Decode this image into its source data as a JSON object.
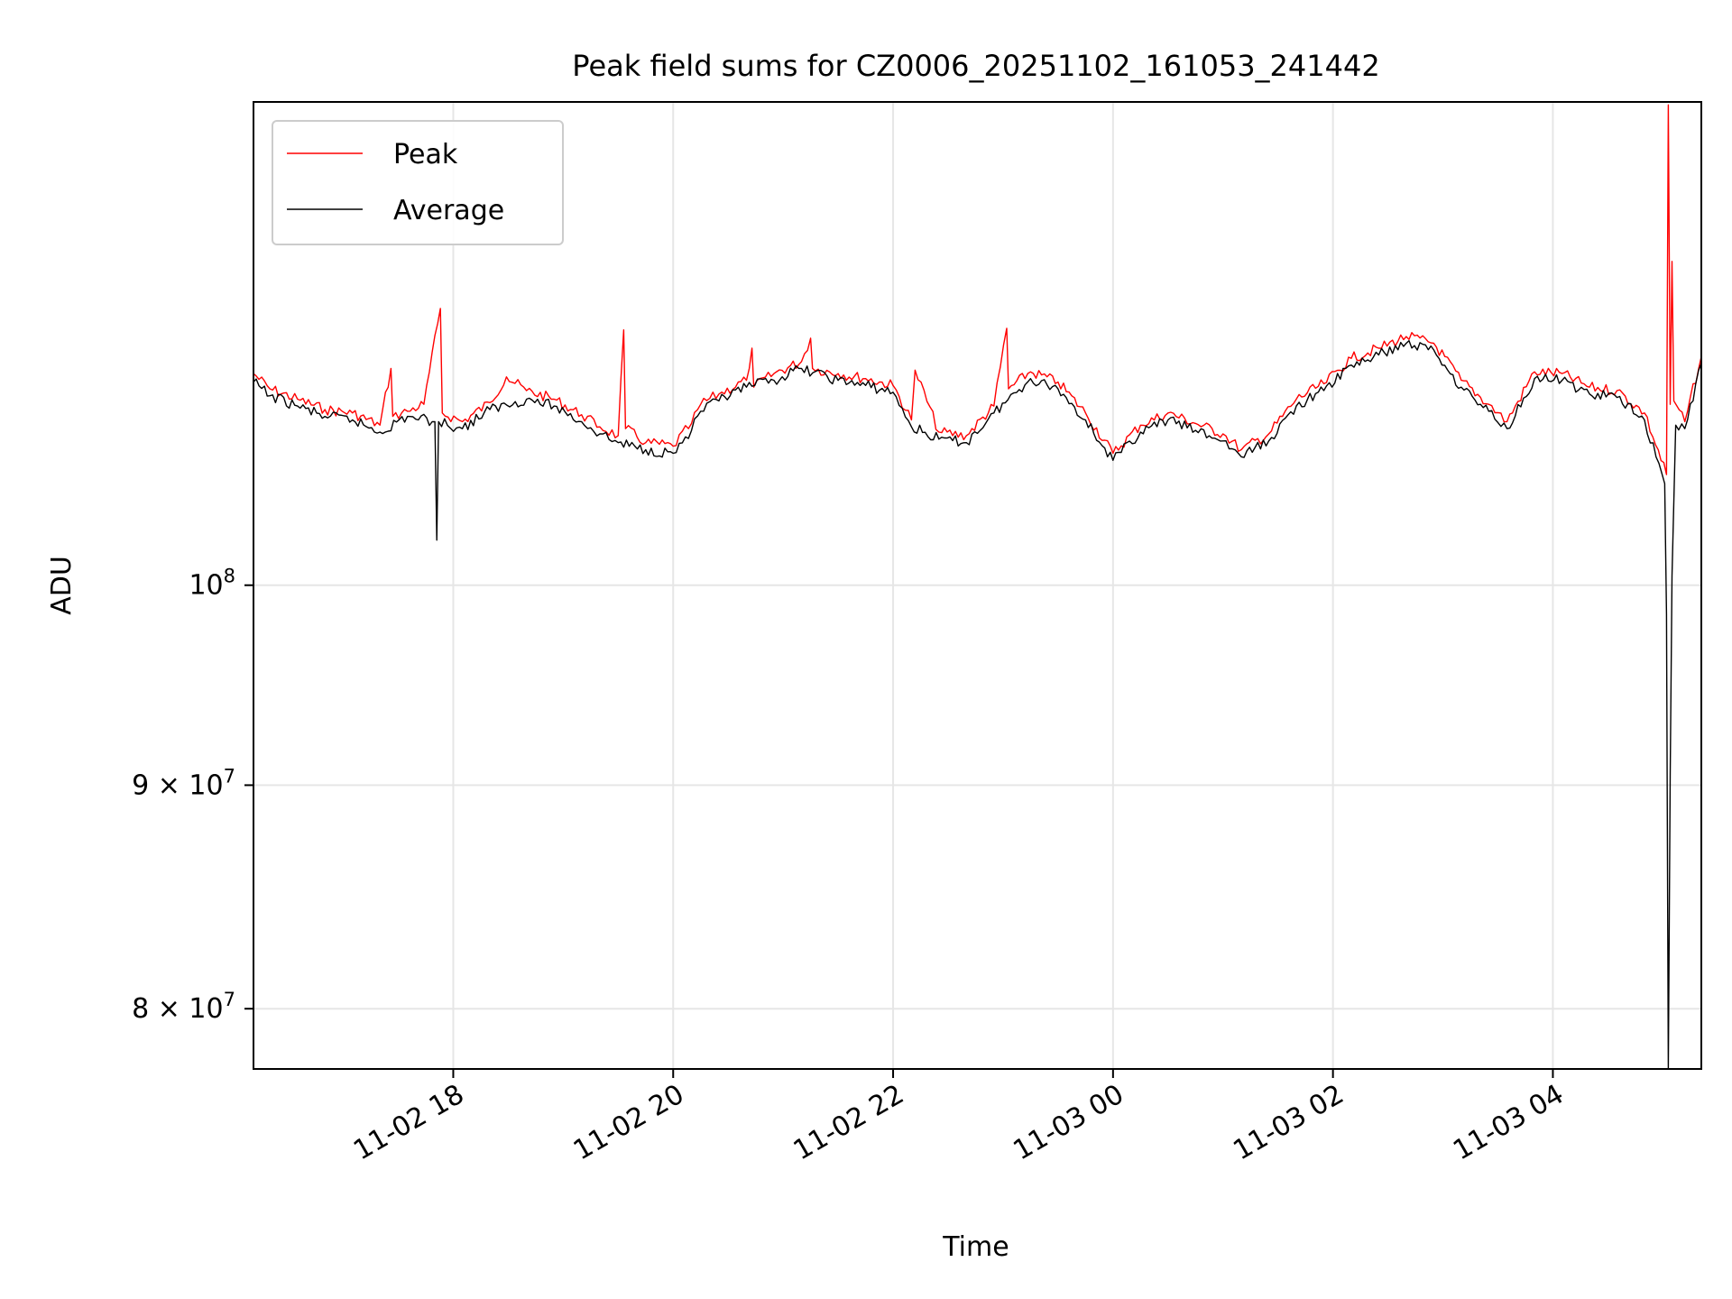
{
  "chart_data": {
    "type": "line",
    "title": "Peak field sums for CZ0006_20251102_161053_241442",
    "xlabel": "Time",
    "ylabel": "ADU",
    "yscale": "log",
    "grid": true,
    "legend_position": "top-left",
    "xlim": [
      "2025-11-02T16:11",
      "2025-11-03T05:21"
    ],
    "ylim": [
      77500000,
      129000000
    ],
    "x_ticks": [
      {
        "at": "2025-11-02T18:00",
        "label": "11-02 18"
      },
      {
        "at": "2025-11-02T20:00",
        "label": "11-02 20"
      },
      {
        "at": "2025-11-02T22:00",
        "label": "11-02 22"
      },
      {
        "at": "2025-11-03T00:00",
        "label": "11-03 00"
      },
      {
        "at": "2025-11-03T02:00",
        "label": "11-03 02"
      },
      {
        "at": "2025-11-03T04:00",
        "label": "11-03 04"
      }
    ],
    "y_ticks": [
      {
        "value": 80000000,
        "label_base": "8 × 10",
        "label_exp": "7"
      },
      {
        "value": 90000000,
        "label_base": "9 × 10",
        "label_exp": "7"
      },
      {
        "value": 100000000,
        "label_base": "10",
        "label_exp": "8"
      }
    ],
    "series": [
      {
        "name": "Peak",
        "color": "#ff0000",
        "points": [
          [
            "2025-11-02T16:11",
            111800000
          ],
          [
            "2025-11-02T16:20",
            110900000
          ],
          [
            "2025-11-02T16:35",
            110300000
          ],
          [
            "2025-11-02T16:50",
            109700000
          ],
          [
            "2025-11-02T17:05",
            109500000
          ],
          [
            "2025-11-02T17:20",
            108800000
          ],
          [
            "2025-11-02T17:26",
            112100000
          ],
          [
            "2025-11-02T17:27",
            109300000
          ],
          [
            "2025-11-02T17:35",
            109600000
          ],
          [
            "2025-11-02T17:44",
            110000000
          ],
          [
            "2025-11-02T17:53",
            115700000
          ],
          [
            "2025-11-02T17:54",
            109500000
          ],
          [
            "2025-11-02T18:05",
            109000000
          ],
          [
            "2025-11-02T18:20",
            110100000
          ],
          [
            "2025-11-02T18:29",
            111600000
          ],
          [
            "2025-11-02T18:40",
            110800000
          ],
          [
            "2025-11-02T18:55",
            110300000
          ],
          [
            "2025-11-02T19:10",
            109400000
          ],
          [
            "2025-11-02T19:20",
            108700000
          ],
          [
            "2025-11-02T19:30",
            108200000
          ],
          [
            "2025-11-02T19:33",
            114400000
          ],
          [
            "2025-11-02T19:34",
            108600000
          ],
          [
            "2025-11-02T19:45",
            107800000
          ],
          [
            "2025-11-02T20:00",
            107600000
          ],
          [
            "2025-11-02T20:10",
            108900000
          ],
          [
            "2025-11-02T20:15",
            110000000
          ],
          [
            "2025-11-02T20:25",
            110600000
          ],
          [
            "2025-11-02T20:40",
            111400000
          ],
          [
            "2025-11-02T20:43",
            113300000
          ],
          [
            "2025-11-02T20:44",
            111000000
          ],
          [
            "2025-11-02T20:55",
            111800000
          ],
          [
            "2025-11-02T21:10",
            112500000
          ],
          [
            "2025-11-02T21:15",
            113900000
          ],
          [
            "2025-11-02T21:16",
            112100000
          ],
          [
            "2025-11-02T21:30",
            111800000
          ],
          [
            "2025-11-02T21:45",
            111500000
          ],
          [
            "2025-11-02T22:00",
            111100000
          ],
          [
            "2025-11-02T22:10",
            109100000
          ],
          [
            "2025-11-02T22:12",
            112000000
          ],
          [
            "2025-11-02T22:25",
            108400000
          ],
          [
            "2025-11-02T22:40",
            108200000
          ],
          [
            "2025-11-02T22:55",
            109900000
          ],
          [
            "2025-11-02T23:02",
            114500000
          ],
          [
            "2025-11-02T23:03",
            110900000
          ],
          [
            "2025-11-02T23:15",
            111900000
          ],
          [
            "2025-11-02T23:30",
            111300000
          ],
          [
            "2025-11-02T23:45",
            109500000
          ],
          [
            "2025-11-03T00:00",
            107200000
          ],
          [
            "2025-11-03T00:15",
            108800000
          ],
          [
            "2025-11-03T00:30",
            109500000
          ],
          [
            "2025-11-03T00:45",
            108900000
          ],
          [
            "2025-11-03T01:00",
            108300000
          ],
          [
            "2025-11-03T01:10",
            107400000
          ],
          [
            "2025-11-03T01:25",
            108300000
          ],
          [
            "2025-11-03T01:40",
            110300000
          ],
          [
            "2025-11-03T01:55",
            111200000
          ],
          [
            "2025-11-03T02:10",
            112700000
          ],
          [
            "2025-11-03T02:25",
            113300000
          ],
          [
            "2025-11-03T02:40",
            114000000
          ],
          [
            "2025-11-03T02:55",
            113600000
          ],
          [
            "2025-11-03T03:10",
            111400000
          ],
          [
            "2025-11-03T03:25",
            110000000
          ],
          [
            "2025-11-03T03:35",
            109000000
          ],
          [
            "2025-11-03T03:50",
            111900000
          ],
          [
            "2025-11-03T04:05",
            111800000
          ],
          [
            "2025-11-03T04:20",
            111000000
          ],
          [
            "2025-11-03T04:35",
            110800000
          ],
          [
            "2025-11-03T04:50",
            109500000
          ],
          [
            "2025-11-03T05:02",
            106000000
          ],
          [
            "2025-11-03T05:03",
            128800000
          ],
          [
            "2025-11-03T05:04",
            110000000
          ],
          [
            "2025-11-03T05:05",
            118600000
          ],
          [
            "2025-11-03T05:06",
            110200000
          ],
          [
            "2025-11-03T05:12",
            109000000
          ],
          [
            "2025-11-03T05:21",
            112800000
          ]
        ]
      },
      {
        "name": "Average",
        "color": "#000000",
        "points": [
          [
            "2025-11-02T16:11",
            111300000
          ],
          [
            "2025-11-02T16:20",
            110500000
          ],
          [
            "2025-11-02T16:35",
            109900000
          ],
          [
            "2025-11-02T16:50",
            109300000
          ],
          [
            "2025-11-02T17:05",
            109100000
          ],
          [
            "2025-11-02T17:20",
            108400000
          ],
          [
            "2025-11-02T17:35",
            109300000
          ],
          [
            "2025-11-02T17:50",
            109000000
          ],
          [
            "2025-11-02T17:51",
            102400000
          ],
          [
            "2025-11-02T17:52",
            109000000
          ],
          [
            "2025-11-02T18:05",
            108600000
          ],
          [
            "2025-11-02T18:20",
            109700000
          ],
          [
            "2025-11-02T18:40",
            110300000
          ],
          [
            "2025-11-02T18:55",
            109900000
          ],
          [
            "2025-11-02T19:10",
            109000000
          ],
          [
            "2025-11-02T19:20",
            108300000
          ],
          [
            "2025-11-02T19:30",
            107800000
          ],
          [
            "2025-11-02T19:45",
            107400000
          ],
          [
            "2025-11-02T20:00",
            107200000
          ],
          [
            "2025-11-02T20:10",
            108500000
          ],
          [
            "2025-11-02T20:15",
            109600000
          ],
          [
            "2025-11-02T20:25",
            110200000
          ],
          [
            "2025-11-02T20:40",
            111000000
          ],
          [
            "2025-11-02T20:55",
            111400000
          ],
          [
            "2025-11-02T21:10",
            112100000
          ],
          [
            "2025-11-02T21:30",
            111400000
          ],
          [
            "2025-11-02T21:45",
            111100000
          ],
          [
            "2025-11-02T22:00",
            110700000
          ],
          [
            "2025-11-02T22:10",
            108700000
          ],
          [
            "2025-11-02T22:25",
            108000000
          ],
          [
            "2025-11-02T22:40",
            107800000
          ],
          [
            "2025-11-02T22:55",
            109500000
          ],
          [
            "2025-11-02T23:15",
            111500000
          ],
          [
            "2025-11-02T23:30",
            110900000
          ],
          [
            "2025-11-02T23:45",
            109100000
          ],
          [
            "2025-11-03T00:00",
            106800000
          ],
          [
            "2025-11-03T00:15",
            108400000
          ],
          [
            "2025-11-03T00:30",
            109100000
          ],
          [
            "2025-11-03T00:45",
            108500000
          ],
          [
            "2025-11-03T01:00",
            107900000
          ],
          [
            "2025-11-03T01:10",
            107000000
          ],
          [
            "2025-11-03T01:25",
            107900000
          ],
          [
            "2025-11-03T01:40",
            109900000
          ],
          [
            "2025-11-03T01:55",
            110800000
          ],
          [
            "2025-11-03T02:10",
            112300000
          ],
          [
            "2025-11-03T02:25",
            112900000
          ],
          [
            "2025-11-03T02:40",
            113600000
          ],
          [
            "2025-11-03T02:55",
            113200000
          ],
          [
            "2025-11-03T03:10",
            111000000
          ],
          [
            "2025-11-03T03:25",
            109600000
          ],
          [
            "2025-11-03T03:35",
            108600000
          ],
          [
            "2025-11-03T03:50",
            111500000
          ],
          [
            "2025-11-03T04:05",
            111400000
          ],
          [
            "2025-11-03T04:20",
            110600000
          ],
          [
            "2025-11-03T04:35",
            110400000
          ],
          [
            "2025-11-03T04:50",
            109100000
          ],
          [
            "2025-11-03T05:01",
            105500000
          ],
          [
            "2025-11-03T05:02",
            98500000
          ],
          [
            "2025-11-03T05:03",
            77500000
          ],
          [
            "2025-11-03T05:04",
            90500000
          ],
          [
            "2025-11-03T05:05",
            100500000
          ],
          [
            "2025-11-03T05:07",
            108800000
          ],
          [
            "2025-11-03T05:12",
            108600000
          ],
          [
            "2025-11-03T05:21",
            112400000
          ]
        ]
      }
    ]
  }
}
